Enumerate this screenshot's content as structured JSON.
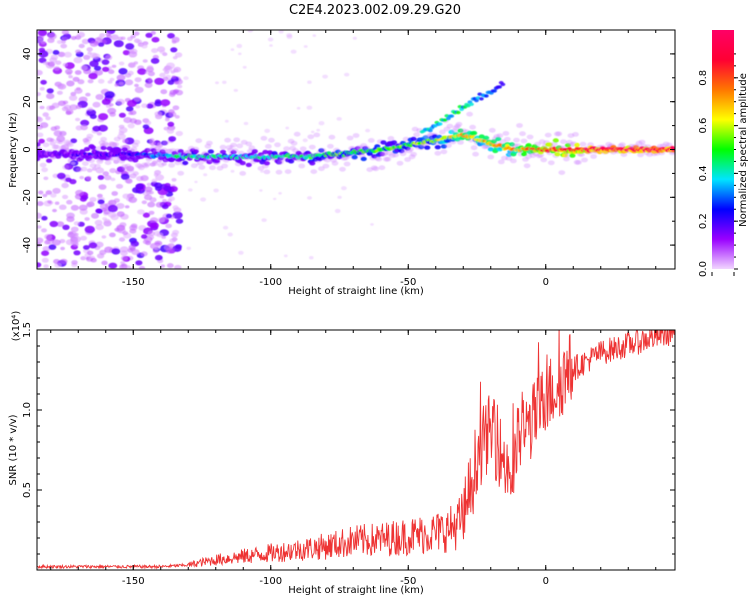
{
  "chart_data": [
    {
      "type": "heatmap",
      "title": "C2E4.2023.002.09.29.G20",
      "xlabel": "Height of straight line (km)",
      "ylabel": "Frequency (Hz)",
      "xlim": [
        -185,
        47
      ],
      "ylim": [
        -50,
        50
      ],
      "xticks": [
        -150,
        -100,
        -50,
        0
      ],
      "yticks": [
        -40,
        -20,
        0,
        20,
        40
      ],
      "xtick_labels": [
        "-150",
        "-100",
        "-50",
        "0"
      ],
      "ytick_labels": [
        "-40",
        "-20",
        "0",
        "20",
        "40"
      ],
      "colorbar": {
        "label": "Normalized spectral amplitude",
        "range": [
          0,
          1
        ],
        "ticks": [
          0.0,
          0.2,
          0.4,
          0.6,
          0.8
        ],
        "tick_labels": [
          "0.0",
          "0.2",
          "0.4",
          "0.6",
          "0.8"
        ],
        "colors": [
          "#f2d6ff",
          "#9900ff",
          "#0000ff",
          "#00e5ff",
          "#00ff00",
          "#ffff00",
          "#ff7700",
          "#ff0033",
          "#ff0066"
        ]
      },
      "ridge": {
        "x": [
          -185,
          -150,
          -130,
          -110,
          -90,
          -75,
          -60,
          -45,
          -35,
          -30,
          -25,
          -20,
          -10,
          0,
          10,
          20,
          47
        ],
        "y": [
          -2,
          -2,
          -3,
          -3,
          -3,
          -2,
          0,
          3,
          5,
          6,
          4,
          2,
          0,
          0,
          0,
          0,
          0
        ],
        "amplitude": [
          0.15,
          0.2,
          0.45,
          0.4,
          0.45,
          0.5,
          0.5,
          0.55,
          0.6,
          0.75,
          0.65,
          0.7,
          0.7,
          0.85,
          0.85,
          0.95,
          0.95
        ]
      },
      "upper_branch": {
        "x": [
          -45,
          -40,
          -35,
          -30,
          -25,
          -20,
          -15
        ],
        "y": [
          7,
          10,
          14,
          18,
          21,
          24,
          28
        ],
        "amplitude": [
          0.4,
          0.45,
          0.5,
          0.45,
          0.35,
          0.3,
          0.3
        ]
      },
      "noise_region_x": [
        -185,
        -133
      ]
    },
    {
      "type": "line",
      "xlabel": "Height of straight line (km)",
      "ylabel": "SNR (10 * v/v)",
      "scale_note": "(x10⁴)",
      "xlim": [
        -185,
        47
      ],
      "ylim": [
        0,
        1.5
      ],
      "xticks": [
        -150,
        -100,
        -50,
        0
      ],
      "yticks": [
        0.5,
        1.0,
        1.5
      ],
      "xtick_labels": [
        "-150",
        "-100",
        "-50",
        "0"
      ],
      "ytick_labels": [
        "0.5",
        "1.0",
        "1.5"
      ],
      "color": "#ee3333",
      "series": [
        {
          "x": [
            -185,
            -160,
            -140,
            -130,
            -120,
            -110,
            -100,
            -90,
            -80,
            -70,
            -60,
            -50,
            -40,
            -35,
            -30,
            -27,
            -25,
            -20,
            -15,
            -12,
            -10,
            -5,
            0,
            5,
            10,
            15,
            20,
            30,
            40,
            47
          ],
          "values": [
            0.02,
            0.02,
            0.02,
            0.03,
            0.06,
            0.08,
            0.1,
            0.12,
            0.14,
            0.17,
            0.18,
            0.2,
            0.22,
            0.24,
            0.3,
            0.5,
            0.7,
            0.85,
            0.65,
            0.55,
            0.8,
            0.9,
            1.05,
            1.15,
            1.25,
            1.3,
            1.35,
            1.4,
            1.45,
            1.48
          ]
        }
      ]
    }
  ]
}
